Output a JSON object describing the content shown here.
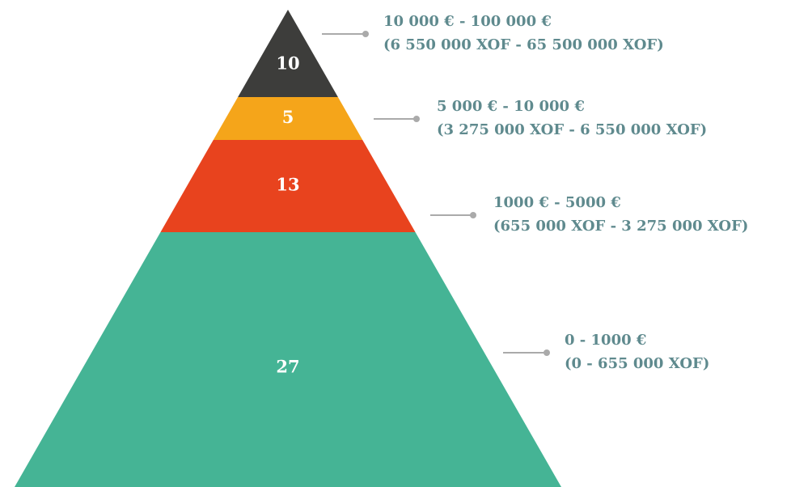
{
  "chart_data": {
    "type": "pyramid",
    "values": [
      10,
      5,
      13,
      27
    ],
    "colors": [
      "#3d3d3b",
      "#f5a51a",
      "#e8431e",
      "#45b495"
    ],
    "labels": [
      [
        "10 000 € - 100 000 €",
        "(6 550 000 XOF - 65 500 000 XOF)"
      ],
      [
        "5 000 € - 10 000 €",
        "(3 275 000 XOF - 6 550 000 XOF)"
      ],
      [
        "1000 € - 5000 €",
        "(655 000 XOF - 3 275 000 XOF)"
      ],
      [
        "0 - 1000 €",
        "(0 - 655 000 XOF)"
      ]
    ]
  }
}
